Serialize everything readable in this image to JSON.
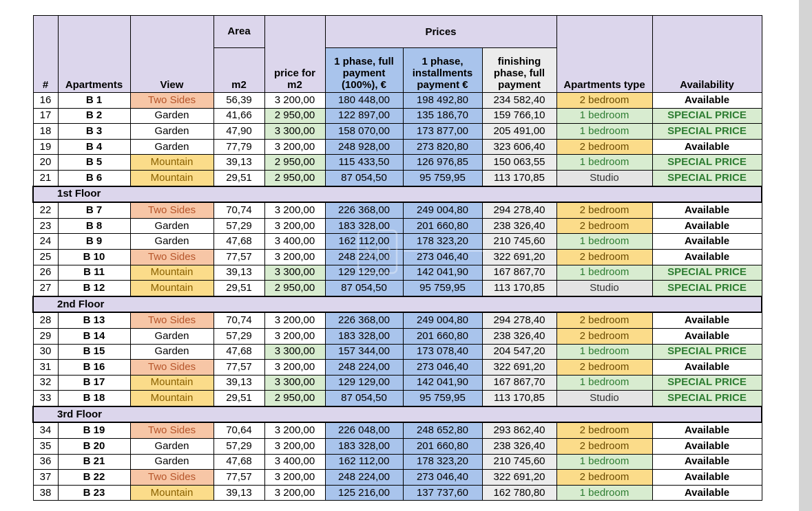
{
  "headers": {
    "num": "#",
    "apartments": "Apartments",
    "view": "View",
    "area_top": "Area",
    "area_unit": "m2",
    "price_m2": "price for m2",
    "prices": "Prices",
    "full_payment": "1 phase, full payment (100%), €",
    "installments": "1 phase, installments payment €",
    "finishing": "finishing phase, full payment",
    "apt_type": "Apartments type",
    "availability": "Availability"
  },
  "sections": [
    {
      "floor": "",
      "rows": [
        [
          "16",
          "B 1",
          "Two Sides",
          "56,39",
          "3 200,00",
          "180 448,00",
          "198 492,80",
          "234 582,40",
          "2 bedroom",
          "Available"
        ],
        [
          "17",
          "B 2",
          "Garden",
          "41,66",
          "2 950,00",
          "122 897,00",
          "135 186,70",
          "159 766,10",
          "1 bedroom",
          "SPECIAL PRICE"
        ],
        [
          "18",
          "B 3",
          "Garden",
          "47,90",
          "3 300,00",
          "158 070,00",
          "173 877,00",
          "205 491,00",
          "1 bedroom",
          "SPECIAL PRICE"
        ],
        [
          "19",
          "B 4",
          "Garden",
          "77,79",
          "3 200,00",
          "248 928,00",
          "273 820,80",
          "323 606,40",
          "2 bedroom",
          "Available"
        ],
        [
          "20",
          "B 5",
          "Mountain",
          "39,13",
          "2 950,00",
          "115 433,50",
          "126 976,85",
          "150 063,55",
          "1 bedroom",
          "SPECIAL PRICE"
        ],
        [
          "21",
          "B 6",
          "Mountain",
          "29,51",
          "2 950,00",
          "87 054,50",
          "95 759,95",
          "113 170,85",
          "Studio",
          "SPECIAL PRICE"
        ]
      ]
    },
    {
      "floor": "1st Floor",
      "rows": [
        [
          "22",
          "B 7",
          "Two Sides",
          "70,74",
          "3 200,00",
          "226 368,00",
          "249 004,80",
          "294 278,40",
          "2 bedroom",
          "Available"
        ],
        [
          "23",
          "B 8",
          "Garden",
          "57,29",
          "3 200,00",
          "183 328,00",
          "201 660,80",
          "238 326,40",
          "2 bedroom",
          "Available"
        ],
        [
          "24",
          "B 9",
          "Garden",
          "47,68",
          "3 400,00",
          "162 112,00",
          "178 323,20",
          "210 745,60",
          "1 bedroom",
          "Available"
        ],
        [
          "25",
          "B 10",
          "Two Sides",
          "77,57",
          "3 200,00",
          "248 224,00",
          "273 046,40",
          "322 691,20",
          "2 bedroom",
          "Available"
        ],
        [
          "26",
          "B 11",
          "Mountain",
          "39,13",
          "3 300,00",
          "129 129,00",
          "142 041,90",
          "167 867,70",
          "1 bedroom",
          "SPECIAL PRICE"
        ],
        [
          "27",
          "B 12",
          "Mountain",
          "29,51",
          "2 950,00",
          "87 054,50",
          "95 759,95",
          "113 170,85",
          "Studio",
          "SPECIAL PRICE"
        ]
      ]
    },
    {
      "floor": "2nd Floor",
      "rows": [
        [
          "28",
          "B 13",
          "Two Sides",
          "70,74",
          "3 200,00",
          "226 368,00",
          "249 004,80",
          "294 278,40",
          "2 bedroom",
          "Available"
        ],
        [
          "29",
          "B 14",
          "Garden",
          "57,29",
          "3 200,00",
          "183 328,00",
          "201 660,80",
          "238 326,40",
          "2 bedroom",
          "Available"
        ],
        [
          "30",
          "B 15",
          "Garden",
          "47,68",
          "3 300,00",
          "157 344,00",
          "173 078,40",
          "204 547,20",
          "1 bedroom",
          "SPECIAL PRICE"
        ],
        [
          "31",
          "B 16",
          "Two Sides",
          "77,57",
          "3 200,00",
          "248 224,00",
          "273 046,40",
          "322 691,20",
          "2 bedroom",
          "Available"
        ],
        [
          "32",
          "B 17",
          "Mountain",
          "39,13",
          "3 300,00",
          "129 129,00",
          "142 041,90",
          "167 867,70",
          "1 bedroom",
          "SPECIAL PRICE"
        ],
        [
          "33",
          "B 18",
          "Mountain",
          "29,51",
          "2 950,00",
          "87 054,50",
          "95 759,95",
          "113 170,85",
          "Studio",
          "SPECIAL PRICE"
        ]
      ]
    },
    {
      "floor": "3rd Floor",
      "rows": [
        [
          "34",
          "B 19",
          "Two Sides",
          "70,64",
          "3 200,00",
          "226 048,00",
          "248 652,80",
          "293 862,40",
          "2 bedroom",
          "Available"
        ],
        [
          "35",
          "B 20",
          "Garden",
          "57,29",
          "3 200,00",
          "183 328,00",
          "201 660,80",
          "238 326,40",
          "2 bedroom",
          "Available"
        ],
        [
          "36",
          "B 21",
          "Garden",
          "47,68",
          "3 400,00",
          "162 112,00",
          "178 323,20",
          "210 745,60",
          "1 bedroom",
          "Available"
        ],
        [
          "37",
          "B 22",
          "Two Sides",
          "77,57",
          "3 200,00",
          "248 224,00",
          "273 046,40",
          "322 691,20",
          "2 bedroom",
          "Available"
        ],
        [
          "38",
          "B 23",
          "Mountain",
          "39,13",
          "3 200,00",
          "125 216,00",
          "137 737,60",
          "162 780,80",
          "1 bedroom",
          "Available"
        ]
      ]
    }
  ],
  "highlight_prices_m2": [
    "2 950,00",
    "3 300,00"
  ],
  "colors": {
    "header_bg": "#dcd6ec",
    "blue": "#a9c4ec",
    "gray": "#ececec",
    "green_bg": "#d8ecd0",
    "green_text": "#2e7d32",
    "orange_bg": "#f7c6a6",
    "yellow_bg": "#fbdc8a"
  },
  "watermark_text": "M3"
}
